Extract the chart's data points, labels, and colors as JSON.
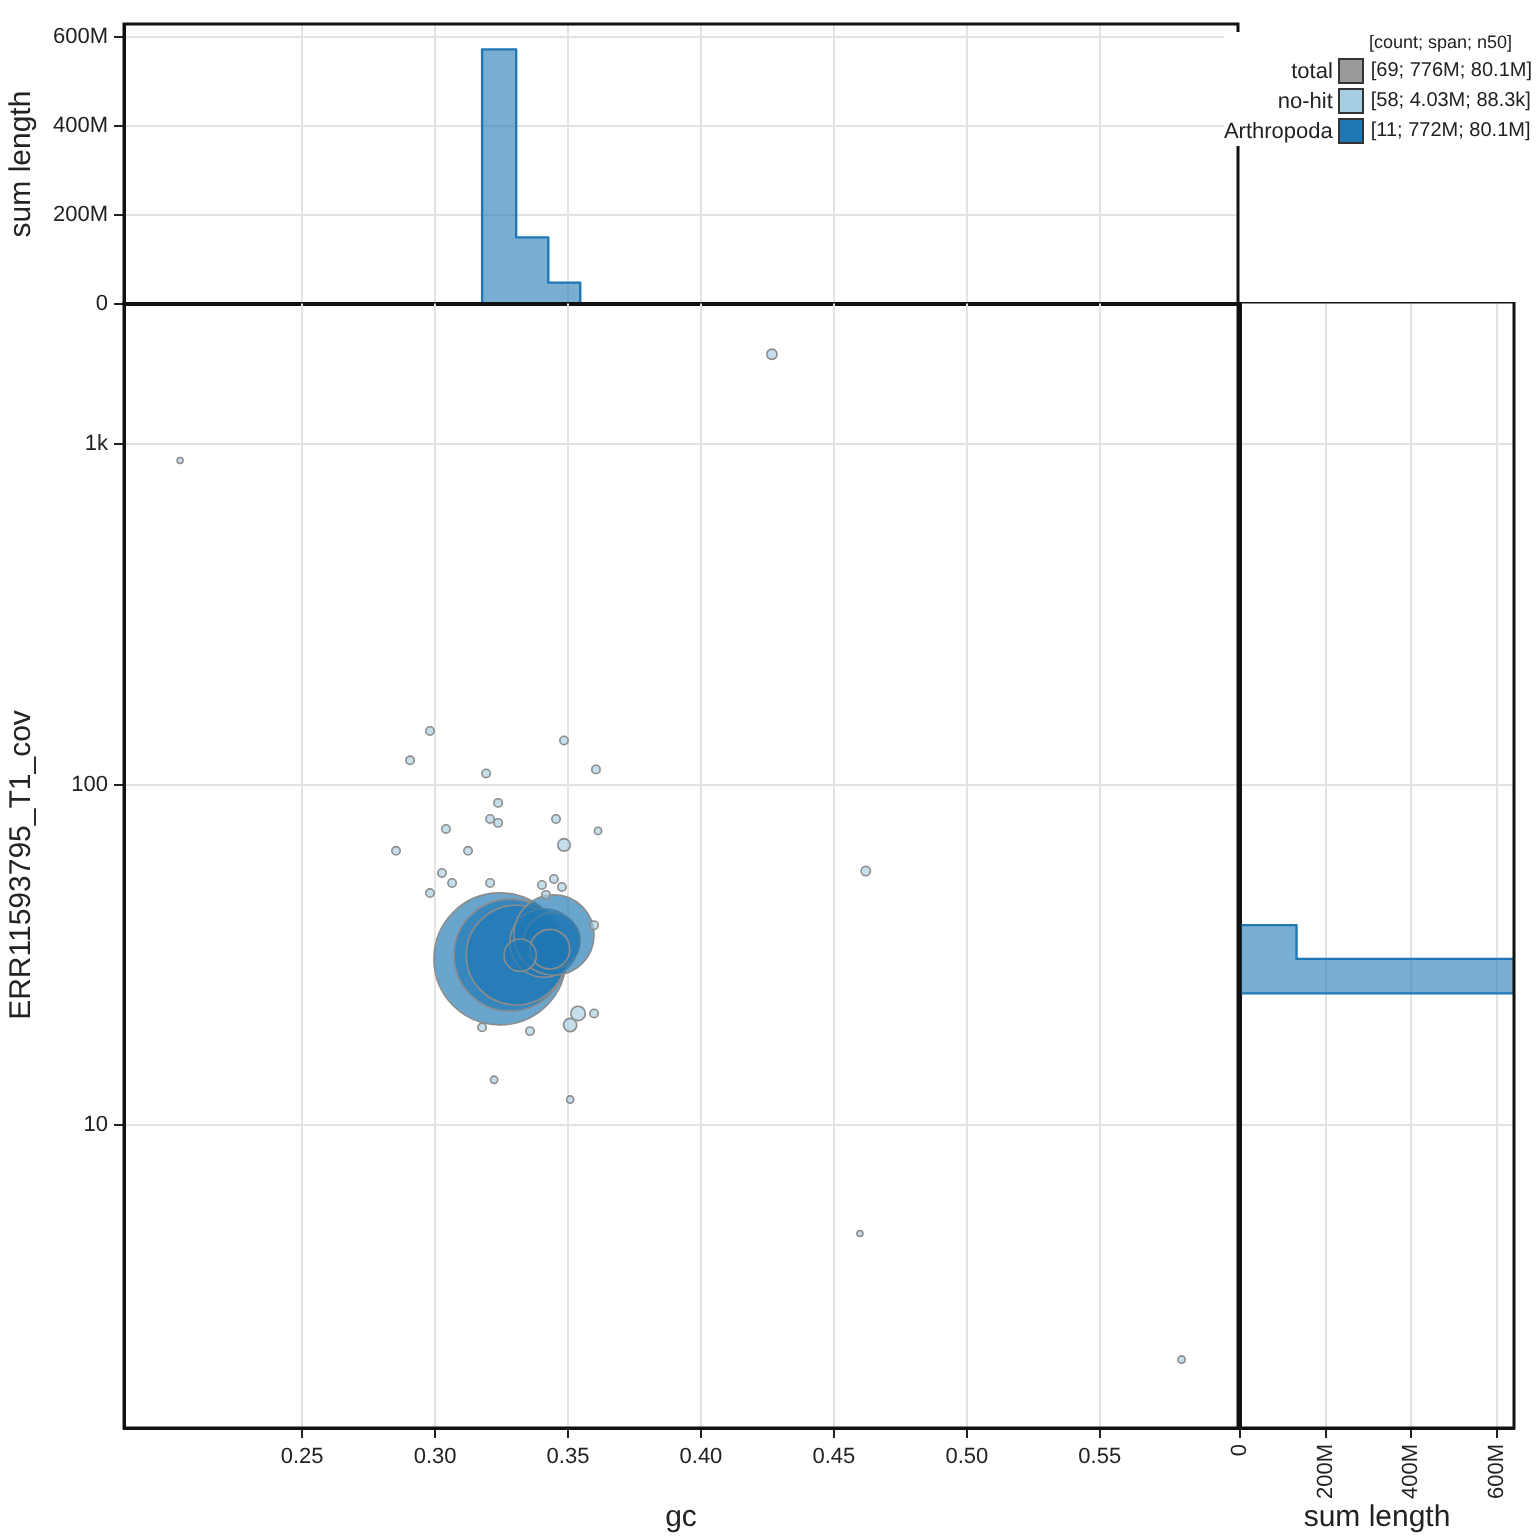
{
  "chart_data": [
    {
      "type": "histogram",
      "ylabel": "sum length",
      "color": "#1f78b4",
      "bins": [
        0.3177,
        0.3305,
        0.3426,
        0.3546
      ],
      "values": [
        573000000,
        150000000,
        48000000
      ],
      "xlim": [
        0.183,
        0.602
      ],
      "xticks": [
        0.25,
        0.3,
        0.35,
        0.4,
        0.45,
        0.5,
        0.55
      ],
      "ylim": [
        0,
        630000000
      ],
      "yticks": [
        0,
        {
          "value": 200000000,
          "label": "200M"
        },
        {
          "value": 400000000,
          "label": "400M"
        },
        {
          "value": 600000000,
          "label": "600M"
        }
      ],
      "tick_labels": "y",
      "grid": true
    },
    {
      "type": "bubble",
      "xlabel": "gc",
      "ylabel": "ERR11593795_T1_cov",
      "log": "y",
      "grid": true,
      "legend": "top right",
      "legend_title": "[count; span; n50]",
      "annotations": [
        "[69; 776M; 80.1M]",
        "[58; 4.03M; 88.3k]",
        "[11; 772M; 80.1M]"
      ],
      "xlim": [
        0.183,
        0.602
      ],
      "xticks": [
        {
          "value": 0.25,
          "label": "0.25"
        },
        {
          "value": 0.3,
          "label": "0.30"
        },
        {
          "value": 0.35,
          "label": "0.35"
        },
        {
          "value": 0.4,
          "label": "0.40"
        },
        {
          "value": 0.45,
          "label": "0.45"
        },
        {
          "value": 0.5,
          "label": "0.50"
        },
        {
          "value": 0.55,
          "label": "0.55"
        }
      ],
      "ylim": [
        1.29,
        2620
      ],
      "yticks": [
        10,
        100,
        {
          "value": 1000,
          "label": "1k"
        }
      ],
      "series": [
        {
          "name": "total",
          "color": "#999999"
        },
        {
          "name": "no-hit",
          "color": "#a6cee3",
          "x": [
            0.2981,
            0.2906,
            0.3485,
            0.3192,
            0.3605,
            0.3237,
            0.3207,
            0.3237,
            0.3455,
            0.3041,
            0.3613,
            0.3485,
            0.2853,
            0.3124,
            0.3026,
            0.3064,
            0.3207,
            0.3447,
            0.3402,
            0.3477,
            0.2981,
            0.3417,
            0.3598,
            0.3538,
            0.3598,
            0.3508,
            0.3177,
            0.3357,
            0.3222,
            0.3508,
            0.2041,
            0.4267,
            0.462,
            0.4598,
            0.5808
          ],
          "values": [
            144,
            118,
            135,
            108,
            111,
            88.5,
            79.4,
            77.3,
            79.4,
            74.2,
            73.2,
            66.6,
            64,
            64,
            55.1,
            51.5,
            51.5,
            52.9,
            50.8,
            50.1,
            48.1,
            47.5,
            38.7,
            21.3,
            21.3,
            19.7,
            19.4,
            18.9,
            13.6,
            11.9,
            897,
            1840,
            55.8,
            4.81,
            2.05
          ],
          "sizes": [
            0.004,
            0.004,
            0.004,
            0.004,
            0.004,
            0.004,
            0.004,
            0.004,
            0.004,
            0.004,
            0.003,
            0.009,
            0.004,
            0.004,
            0.004,
            0.004,
            0.004,
            0.004,
            0.004,
            0.004,
            0.004,
            0.004,
            0.004,
            0.012,
            0.004,
            0.01,
            0.004,
            0.004,
            0.003,
            0.003,
            0.002,
            0.006,
            0.005,
            0.002,
            0.003
          ]
        },
        {
          "name": "Arthropoda",
          "color": "#1f78b4",
          "x": [
            0.3244,
            0.3282,
            0.3305,
            0.341,
            0.344,
            0.3447,
            0.3432,
            0.332
          ],
          "values": [
            30.8,
            31.6,
            31.6,
            34.3,
            34.8,
            36.2,
            32.9,
            31.6
          ],
          "sizes": [
            1,
            0.72,
            0.57,
            0.27,
            0.18,
            0.37,
            0.09,
            0.06
          ]
        }
      ]
    },
    {
      "type": "histogram",
      "orientation": "horizontal",
      "xlabel": "sum length",
      "color": "#1f78b4",
      "bins": [
        24.4,
        30.8,
        38.7
      ],
      "values": [
        640000000,
        132000000
      ],
      "log": "y",
      "ylim": [
        1.29,
        2620
      ],
      "yticks": [
        10,
        100,
        1000
      ],
      "xlim": [
        0,
        640000000
      ],
      "xticks": [
        0,
        {
          "value": 200000000,
          "label": "200M"
        },
        {
          "value": 400000000,
          "label": "400M"
        },
        {
          "value": 600000000,
          "label": "600M"
        }
      ],
      "tick_labels": "x",
      "grid": true
    }
  ]
}
